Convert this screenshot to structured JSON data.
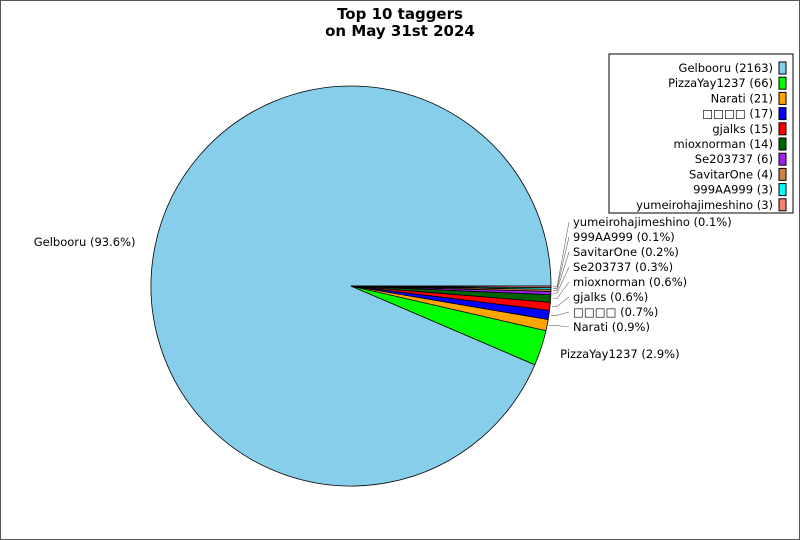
{
  "chart_data": {
    "type": "pie",
    "title": [
      "Top 10 taggers",
      "on May 31st 2024"
    ],
    "start_angle_deg": 0,
    "direction": "counterclockwise",
    "legend_placement": "top-right",
    "slices": [
      {
        "name": "Gelbooru",
        "value": 2163,
        "color": "#87CEEB",
        "legend": "Gelbooru (2163)",
        "label": "Gelbooru (93.6%)"
      },
      {
        "name": "PizzaYay1237",
        "value": 66,
        "color": "#00FF00",
        "legend": "PizzaYay1237 (66)",
        "label": "PizzaYay1237 (2.9%)"
      },
      {
        "name": "Narati",
        "value": 21,
        "color": "#FFA500",
        "legend": "Narati (21)",
        "label": "Narati (0.9%)"
      },
      {
        "name": "□□□□",
        "value": 17,
        "color": "#0000FF",
        "legend": "□□□□ (17)",
        "label": "□□□□ (0.7%)"
      },
      {
        "name": "gjalks",
        "value": 15,
        "color": "#FF0000",
        "legend": "gjalks (15)",
        "label": "gjalks (0.6%)"
      },
      {
        "name": "mioxnorman",
        "value": 14,
        "color": "#006400",
        "legend": "mioxnorman (14)",
        "label": "mioxnorman (0.6%)"
      },
      {
        "name": "Se203737",
        "value": 6,
        "color": "#A020F0",
        "legend": "Se203737 (6)",
        "label": "Se203737 (0.3%)"
      },
      {
        "name": "SavitarOne",
        "value": 4,
        "color": "#CD853F",
        "legend": "SavitarOne (4)",
        "label": "SavitarOne (0.2%)"
      },
      {
        "name": "999AA999",
        "value": 3,
        "color": "#00FFFF",
        "legend": "999AA999 (3)",
        "label": "999AA999 (0.1%)"
      },
      {
        "name": "yumeirohajimeshino",
        "value": 3,
        "color": "#FA8072",
        "legend": "yumeirohajimeshino (3)",
        "label": "yumeirohajimeshino (0.1%)"
      }
    ]
  }
}
